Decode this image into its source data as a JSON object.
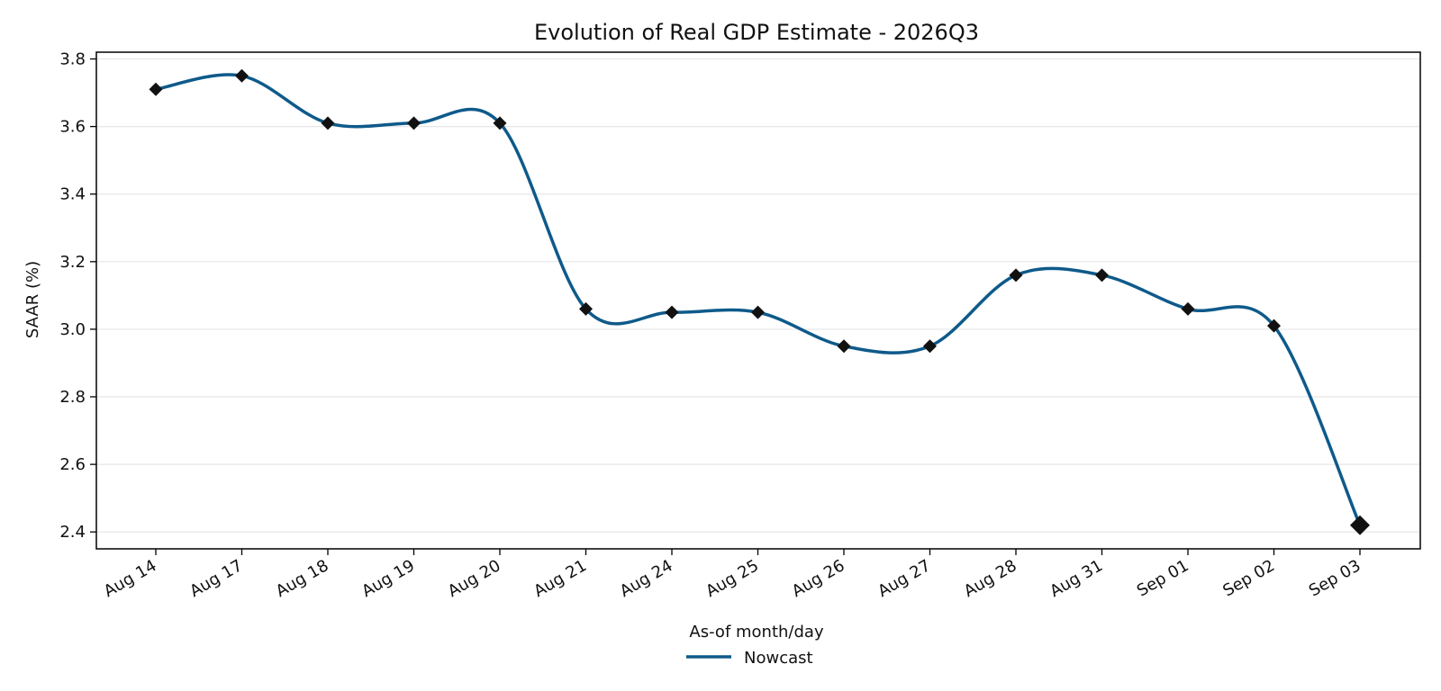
{
  "chart_data": {
    "type": "line",
    "title": "Evolution of Real GDP Estimate - 2026Q3",
    "xlabel": "As-of month/day",
    "ylabel": "SAAR (%)",
    "categories": [
      "Aug 14",
      "Aug 17",
      "Aug 18",
      "Aug 19",
      "Aug 20",
      "Aug 21",
      "Aug 24",
      "Aug 25",
      "Aug 26",
      "Aug 27",
      "Aug 28",
      "Aug 31",
      "Sep 01",
      "Sep 02",
      "Sep 03"
    ],
    "series": [
      {
        "name": "Nowcast",
        "values": [
          3.71,
          3.75,
          3.61,
          3.61,
          3.61,
          3.06,
          3.05,
          3.05,
          2.95,
          2.95,
          3.16,
          3.16,
          3.06,
          3.01,
          2.42
        ]
      }
    ],
    "ylim": [
      2.35,
      3.82
    ],
    "yticks": [
      2.4,
      2.6,
      2.8,
      3.0,
      3.2,
      3.4,
      3.6,
      3.8
    ],
    "grid": "horizontal",
    "legend": "bottom-center",
    "colors": {
      "line": "#0e5a8a",
      "marker": "#111111",
      "grid": "#e6e6e6",
      "axes": "#000000"
    }
  }
}
